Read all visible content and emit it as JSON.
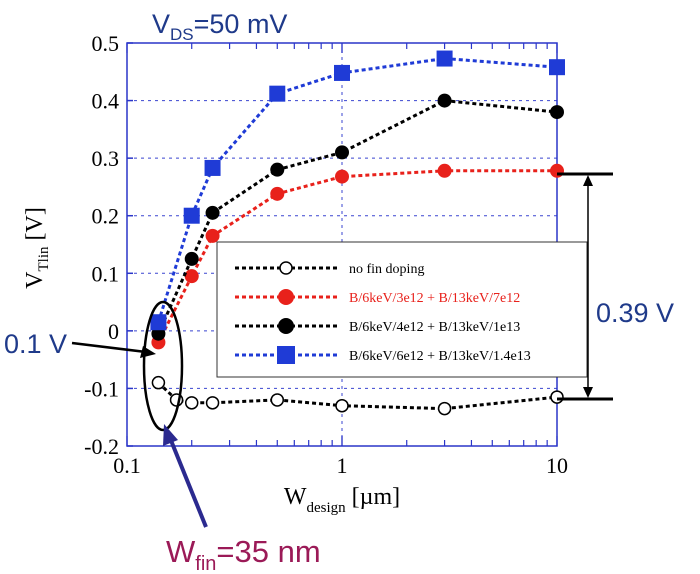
{
  "chart_data": {
    "type": "scatter",
    "title": "",
    "condition": {
      "prefix": "V",
      "sub": "DS",
      "suffix": "=50 mV"
    },
    "xlabel": {
      "main": "W",
      "sub": "design",
      "unit": " [µm]"
    },
    "ylabel": {
      "main": "V",
      "sub": "Tlin",
      "unit": " [V]"
    },
    "x_scale": "log",
    "xlim": [
      0.1,
      10
    ],
    "ylim": [
      -0.2,
      0.5
    ],
    "x_ticks": [
      "0.1",
      "1",
      "10"
    ],
    "y_ticks": [
      "-0.2",
      "-0.1",
      "0",
      "0.1",
      "0.2",
      "0.3",
      "0.4",
      "0.5"
    ],
    "grid": true,
    "legend_position": "center-right",
    "series": [
      {
        "name": "no fin doping",
        "color": "#000000",
        "marker": "open-circle",
        "x": [
          0.14,
          0.17,
          0.2,
          0.25,
          0.5,
          1,
          3,
          10
        ],
        "y": [
          -0.09,
          -0.12,
          -0.125,
          -0.125,
          -0.12,
          -0.13,
          -0.135,
          -0.115
        ]
      },
      {
        "name": "B/6keV/3e12 + B/13keV/7e12",
        "color": "#e8211b",
        "marker": "filled-circle",
        "x": [
          0.14,
          0.2,
          0.25,
          0.5,
          1,
          3,
          10
        ],
        "y": [
          -0.02,
          0.095,
          0.165,
          0.238,
          0.268,
          0.278,
          0.278
        ]
      },
      {
        "name": "B/6keV/4e12 + B/13keV/1e13",
        "color": "#000000",
        "marker": "filled-circle",
        "x": [
          0.14,
          0.2,
          0.25,
          0.5,
          1,
          3,
          10
        ],
        "y": [
          -0.005,
          0.125,
          0.205,
          0.28,
          0.31,
          0.4,
          0.38
        ]
      },
      {
        "name": "B/6keV/6e12 + B/13keV/1.4e13",
        "color": "#1f3bd6",
        "marker": "filled-square",
        "x": [
          0.14,
          0.2,
          0.25,
          0.5,
          1,
          3,
          10
        ],
        "y": [
          0.015,
          0.2,
          0.283,
          0.412,
          0.448,
          0.473,
          0.458
        ]
      }
    ],
    "annotations": {
      "delta_label": "0.39 V",
      "small_label": "0.1 V",
      "fin_label": {
        "main": "W",
        "sub": "fin",
        "suffix": "=35 nm"
      }
    }
  }
}
